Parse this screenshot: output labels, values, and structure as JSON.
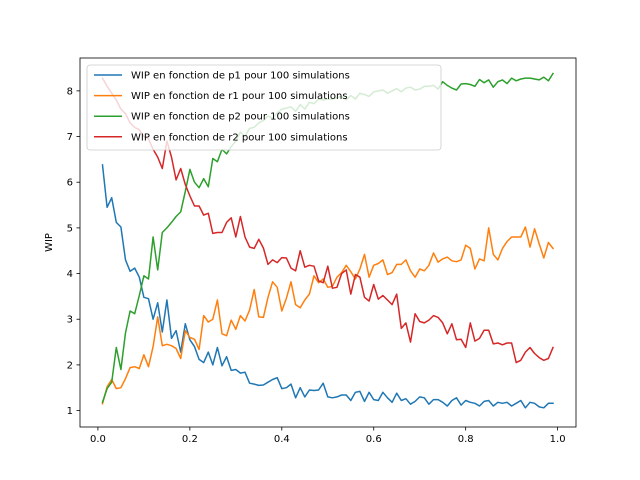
{
  "chart_data": {
    "type": "line",
    "title": "",
    "xlabel": "",
    "ylabel": "WIP",
    "xlim": [
      -0.039,
      1.04
    ],
    "ylim": [
      0.64,
      8.72
    ],
    "xticks": [
      0.0,
      0.2,
      0.4,
      0.6,
      0.8,
      1.0
    ],
    "xtick_labels": [
      "0.0",
      "0.2",
      "0.4",
      "0.6",
      "0.8",
      "1.0"
    ],
    "yticks": [
      1,
      2,
      3,
      4,
      5,
      6,
      7,
      8
    ],
    "ytick_labels": [
      "1",
      "2",
      "3",
      "4",
      "5",
      "6",
      "7",
      "8"
    ],
    "legend_position": "upper-left",
    "x": [
      0.01,
      0.02,
      0.03,
      0.04,
      0.05,
      0.06,
      0.07,
      0.08,
      0.09,
      0.1,
      0.11,
      0.12,
      0.13,
      0.14,
      0.15,
      0.16,
      0.17,
      0.18,
      0.19,
      0.2,
      0.21,
      0.22,
      0.23,
      0.24,
      0.25,
      0.26,
      0.27,
      0.28,
      0.29,
      0.3,
      0.31,
      0.32,
      0.33,
      0.34,
      0.35,
      0.36,
      0.37,
      0.38,
      0.39,
      0.4,
      0.41,
      0.42,
      0.43,
      0.44,
      0.45,
      0.46,
      0.47,
      0.48,
      0.49,
      0.5,
      0.51,
      0.52,
      0.53,
      0.54,
      0.55,
      0.56,
      0.57,
      0.58,
      0.59,
      0.6,
      0.61,
      0.62,
      0.63,
      0.64,
      0.65,
      0.66,
      0.67,
      0.68,
      0.69,
      0.7,
      0.71,
      0.72,
      0.73,
      0.74,
      0.75,
      0.76,
      0.77,
      0.78,
      0.79,
      0.8,
      0.81,
      0.82,
      0.83,
      0.84,
      0.85,
      0.86,
      0.87,
      0.88,
      0.89,
      0.9,
      0.91,
      0.92,
      0.93,
      0.94,
      0.95,
      0.96,
      0.97,
      0.98,
      0.99
    ],
    "series": [
      {
        "name": "WIP en fonction de p1 pour 100 simulations",
        "color": "#1f77b4",
        "values": [
          6.38,
          5.45,
          5.66,
          5.12,
          5.02,
          4.3,
          4.05,
          4.12,
          3.92,
          3.48,
          3.45,
          3.0,
          3.36,
          2.72,
          3.42,
          2.58,
          2.75,
          2.28,
          2.9,
          2.55,
          2.4,
          2.12,
          2.05,
          2.28,
          2.0,
          2.38,
          1.98,
          2.18,
          1.88,
          1.9,
          1.82,
          1.84,
          1.6,
          1.58,
          1.55,
          1.56,
          1.62,
          1.68,
          1.72,
          1.48,
          1.5,
          1.58,
          1.28,
          1.5,
          1.3,
          1.45,
          1.44,
          1.45,
          1.6,
          1.3,
          1.28,
          1.3,
          1.34,
          1.34,
          1.22,
          1.4,
          1.42,
          1.2,
          1.4,
          1.24,
          1.22,
          1.4,
          1.28,
          1.18,
          1.38,
          1.22,
          1.26,
          1.14,
          1.2,
          1.3,
          1.28,
          1.14,
          1.24,
          1.24,
          1.18,
          1.1,
          1.22,
          1.28,
          1.12,
          1.22,
          1.18,
          1.16,
          1.1,
          1.2,
          1.22,
          1.1,
          1.18,
          1.16,
          1.18,
          1.1,
          1.16,
          1.22,
          1.06,
          1.18,
          1.16,
          1.08,
          1.06,
          1.16,
          1.16
        ]
      },
      {
        "name": "WIP en fonction de r1 pour 100 simulations",
        "color": "#ff7f0e",
        "values": [
          1.15,
          1.52,
          1.68,
          1.48,
          1.5,
          1.7,
          1.94,
          1.96,
          1.92,
          2.22,
          1.96,
          2.4,
          3.05,
          2.42,
          2.45,
          2.42,
          2.36,
          2.14,
          2.75,
          2.6,
          2.56,
          2.34,
          3.08,
          2.94,
          3.0,
          3.42,
          2.68,
          2.64,
          2.98,
          2.78,
          3.08,
          2.96,
          3.2,
          3.65,
          3.05,
          3.04,
          3.48,
          3.82,
          3.7,
          3.18,
          3.46,
          3.82,
          3.32,
          3.25,
          3.42,
          3.55,
          3.95,
          3.8,
          3.88,
          3.7,
          3.72,
          3.92,
          4.02,
          4.18,
          4.04,
          3.88,
          4.1,
          4.42,
          3.92,
          4.18,
          4.22,
          4.3,
          3.98,
          4.02,
          4.2,
          4.2,
          4.3,
          4.06,
          3.92,
          4.1,
          4.06,
          4.18,
          4.45,
          4.25,
          4.32,
          4.36,
          4.28,
          4.26,
          4.3,
          4.62,
          4.55,
          4.1,
          4.32,
          4.28,
          5.0,
          4.42,
          4.3,
          4.55,
          4.7,
          4.8,
          4.8,
          4.8,
          5.02,
          4.58,
          4.98,
          4.65,
          4.34,
          4.68,
          4.55
        ]
      },
      {
        "name": "WIP en fonction de p2 pour 100 simulations",
        "color": "#2ca02c",
        "values": [
          1.18,
          1.48,
          1.62,
          2.38,
          1.9,
          2.7,
          3.18,
          3.12,
          3.52,
          3.95,
          3.88,
          4.8,
          4.08,
          4.9,
          5.0,
          5.12,
          5.25,
          5.35,
          5.8,
          6.28,
          6.0,
          5.88,
          6.08,
          5.9,
          6.52,
          6.45,
          6.72,
          6.62,
          6.78,
          6.9,
          7.1,
          7.0,
          7.18,
          7.2,
          7.3,
          7.35,
          7.45,
          7.4,
          7.52,
          7.6,
          7.62,
          7.65,
          7.55,
          7.7,
          7.6,
          7.75,
          7.72,
          7.82,
          7.8,
          7.82,
          7.82,
          7.85,
          7.88,
          7.8,
          7.9,
          7.82,
          7.95,
          7.92,
          7.88,
          7.98,
          8.0,
          8.02,
          7.95,
          8.0,
          8.05,
          7.98,
          8.06,
          8.08,
          8.02,
          8.04,
          8.1,
          8.1,
          8.12,
          8.04,
          8.2,
          8.12,
          8.06,
          8.02,
          8.15,
          8.16,
          8.14,
          8.1,
          8.25,
          8.18,
          8.24,
          8.08,
          8.2,
          8.24,
          8.16,
          8.28,
          8.22,
          8.26,
          8.28,
          8.28,
          8.26,
          8.24,
          8.3,
          8.22,
          8.38
        ]
      },
      {
        "name": "WIP en fonction de r2 pour 100 simulations",
        "color": "#d62728",
        "values": [
          8.28,
          8.1,
          7.95,
          7.8,
          7.6,
          7.5,
          7.3,
          7.2,
          7.15,
          7.0,
          6.95,
          6.72,
          6.55,
          6.3,
          6.9,
          6.55,
          6.05,
          6.3,
          5.95,
          5.7,
          5.48,
          5.48,
          5.28,
          5.32,
          4.88,
          4.9,
          4.9,
          5.12,
          5.22,
          4.8,
          5.25,
          4.8,
          4.58,
          4.55,
          4.75,
          4.56,
          4.2,
          4.3,
          4.24,
          4.35,
          4.34,
          4.12,
          4.06,
          4.5,
          4.14,
          4.18,
          4.16,
          3.84,
          3.8,
          4.16,
          3.68,
          3.7,
          4.0,
          4.08,
          3.55,
          3.98,
          3.92,
          3.48,
          3.4,
          3.76,
          3.44,
          3.52,
          3.42,
          3.32,
          3.55,
          2.8,
          2.92,
          2.5,
          3.12,
          2.95,
          2.92,
          2.98,
          3.08,
          3.04,
          2.92,
          2.68,
          2.9,
          2.55,
          2.56,
          2.38,
          2.92,
          2.52,
          2.58,
          2.76,
          2.76,
          2.46,
          2.48,
          2.44,
          2.48,
          2.48,
          2.05,
          2.1,
          2.28,
          2.38,
          2.25,
          2.16,
          2.1,
          2.14,
          2.38
        ]
      }
    ]
  }
}
